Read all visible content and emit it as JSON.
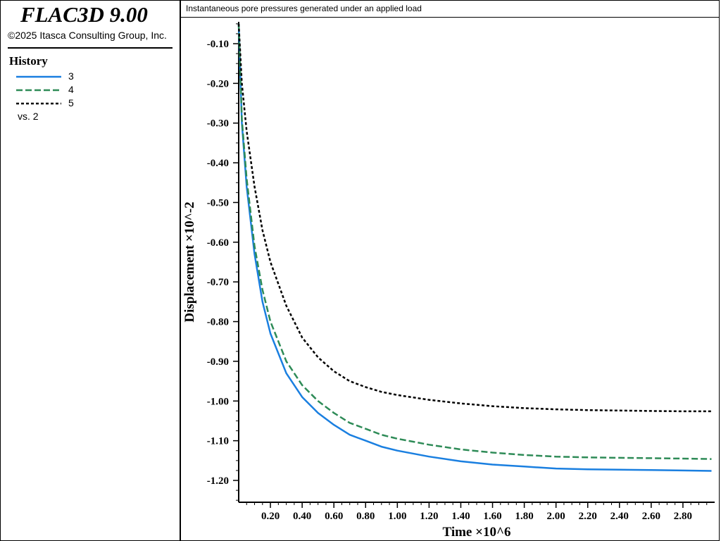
{
  "app": {
    "title": "FLAC3D 9.00",
    "copyright": "©2025 Itasca Consulting Group, Inc."
  },
  "legend": {
    "heading": "History",
    "items": [
      {
        "label": "3",
        "color": "#1a7fe0",
        "style": "solid"
      },
      {
        "label": "4",
        "color": "#2e8b57",
        "style": "dashed"
      },
      {
        "label": "5",
        "color": "#000000",
        "style": "dotted"
      }
    ],
    "vs": "vs. 2"
  },
  "plot": {
    "title": "Instantaneous pore pressures generated under an applied load"
  },
  "chart_data": {
    "type": "line",
    "xlabel": "Time ×10^6",
    "ylabel": "Displacement ×10^-2",
    "xlim": [
      0,
      3.0
    ],
    "ylim": [
      -1.255,
      -0.045
    ],
    "xticks": [
      0.2,
      0.4,
      0.6,
      0.8,
      1.0,
      1.2,
      1.4,
      1.6,
      1.8,
      2.0,
      2.2,
      2.4,
      2.6,
      2.8
    ],
    "xtick_labels": [
      "0.20",
      "0.40",
      "0.60",
      "0.80",
      "1.00",
      "1.20",
      "1.40",
      "1.60",
      "1.80",
      "2.00",
      "2.20",
      "2.40",
      "2.60",
      "2.80"
    ],
    "yticks": [
      -0.1,
      -0.2,
      -0.3,
      -0.4,
      -0.5,
      -0.6,
      -0.7,
      -0.8,
      -0.9,
      -1.0,
      -1.1,
      -1.2
    ],
    "ytick_labels": [
      "-0.10",
      "-0.20",
      "-0.30",
      "-0.40",
      "-0.50",
      "-0.60",
      "-0.70",
      "-0.80",
      "-0.90",
      "-1.00",
      "-1.10",
      "-1.20"
    ],
    "grid": false,
    "x": [
      0,
      0.02,
      0.05,
      0.1,
      0.15,
      0.2,
      0.3,
      0.4,
      0.5,
      0.6,
      0.7,
      0.8,
      0.9,
      1.0,
      1.2,
      1.4,
      1.6,
      1.8,
      2.0,
      2.2,
      2.4,
      2.6,
      2.8,
      2.98
    ],
    "series": [
      {
        "name": "3",
        "color": "#1a7fe0",
        "style": "solid",
        "values": [
          -0.05,
          -0.3,
          -0.46,
          -0.63,
          -0.75,
          -0.83,
          -0.93,
          -0.99,
          -1.03,
          -1.06,
          -1.085,
          -1.1,
          -1.115,
          -1.125,
          -1.14,
          -1.152,
          -1.16,
          -1.165,
          -1.17,
          -1.172,
          -1.173,
          -1.174,
          -1.175,
          -1.176
        ]
      },
      {
        "name": "4",
        "color": "#2e8b57",
        "style": "dashed",
        "values": [
          -0.05,
          -0.29,
          -0.44,
          -0.61,
          -0.72,
          -0.8,
          -0.9,
          -0.96,
          -1.0,
          -1.03,
          -1.055,
          -1.07,
          -1.085,
          -1.095,
          -1.11,
          -1.122,
          -1.13,
          -1.136,
          -1.14,
          -1.142,
          -1.143,
          -1.144,
          -1.145,
          -1.146
        ]
      },
      {
        "name": "5",
        "color": "#000000",
        "style": "dotted",
        "values": [
          -0.05,
          -0.2,
          -0.32,
          -0.46,
          -0.57,
          -0.65,
          -0.76,
          -0.84,
          -0.89,
          -0.925,
          -0.95,
          -0.965,
          -0.977,
          -0.985,
          -0.997,
          -1.006,
          -1.013,
          -1.018,
          -1.021,
          -1.023,
          -1.024,
          -1.025,
          -1.026,
          -1.026
        ]
      }
    ]
  }
}
